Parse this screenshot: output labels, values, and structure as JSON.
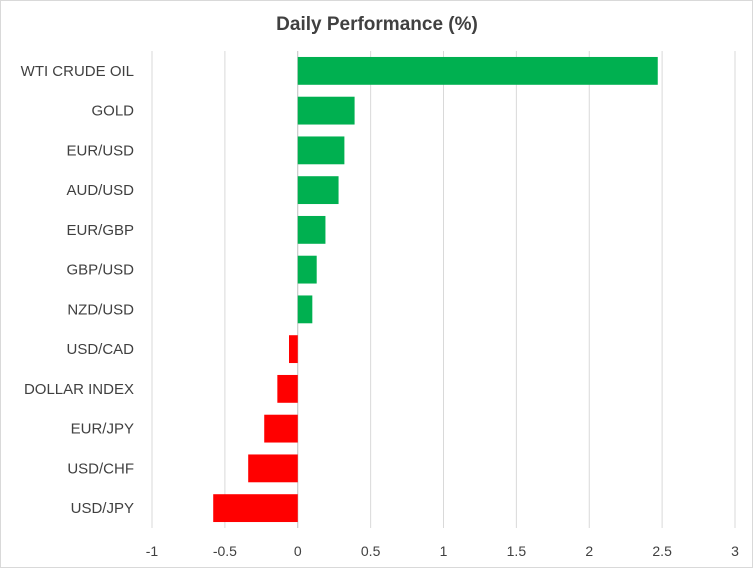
{
  "chart_data": {
    "type": "bar",
    "orientation": "horizontal",
    "title": "Daily Performance (%)",
    "xlabel": "",
    "ylabel": "",
    "xlim": [
      -1,
      3
    ],
    "x_ticks": [
      "-1",
      "-0.5",
      "0",
      "0.5",
      "1",
      "1.5",
      "2",
      "2.5",
      "3"
    ],
    "x_tick_values": [
      -1,
      -0.5,
      0,
      0.5,
      1,
      1.5,
      2,
      2.5,
      3
    ],
    "grid": "vertical",
    "legend": "none",
    "categories": [
      "WTI CRUDE OIL",
      "GOLD",
      "EUR/USD",
      "AUD/USD",
      "EUR/GBP",
      "GBP/USD",
      "NZD/USD",
      "USD/CAD",
      "DOLLAR INDEX",
      "EUR/JPY",
      "USD/CHF",
      "USD/JPY"
    ],
    "values": [
      2.47,
      0.39,
      0.32,
      0.28,
      0.19,
      0.13,
      0.1,
      -0.06,
      -0.14,
      -0.23,
      -0.34,
      -0.58
    ],
    "colors": {
      "positive": "#00b050",
      "negative": "#ff0000",
      "grid": "#d9d9d9",
      "axis": "#bfbfbf"
    }
  }
}
